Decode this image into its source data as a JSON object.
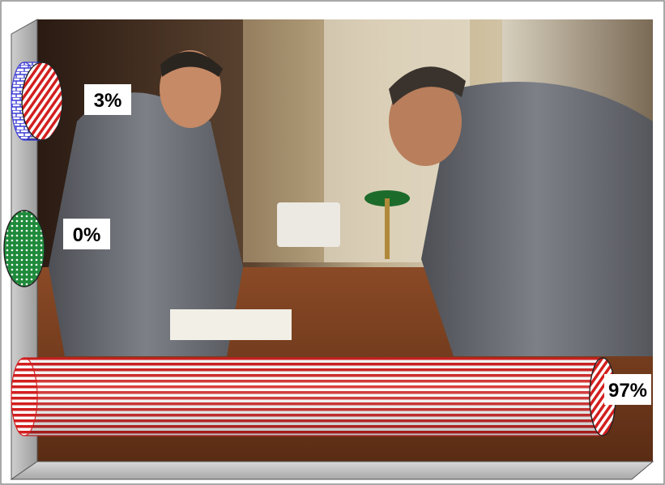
{
  "chart_data": {
    "type": "bar",
    "orientation": "horizontal",
    "categories": [
      "",
      "",
      ""
    ],
    "values": [
      3,
      0,
      97
    ],
    "data_labels": [
      "3%",
      "0%",
      "97%"
    ],
    "series_colors": [
      "#3b3bd6",
      "#1e8a3a",
      "#d21f1f"
    ],
    "patterns": [
      "brick",
      "dots",
      "horizontal-stripes"
    ],
    "xlim": [
      0,
      100
    ],
    "grid": false,
    "legend": "none",
    "background": "photo"
  }
}
